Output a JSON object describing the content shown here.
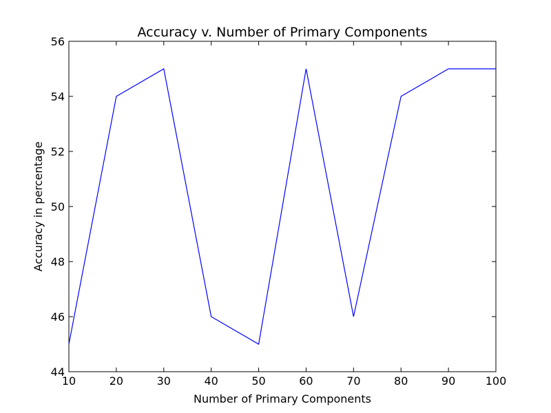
{
  "chart_data": {
    "type": "line",
    "title": "Accuracy v. Number of Primary Components",
    "xlabel": "Number of Primary Components",
    "ylabel": "Accuracy in percentage",
    "x": [
      10,
      20,
      30,
      40,
      50,
      60,
      70,
      80,
      90,
      100
    ],
    "series": [
      {
        "values": [
          45,
          54,
          55,
          46,
          45,
          55,
          46,
          54,
          55,
          55
        ]
      }
    ],
    "xlim": [
      10,
      100
    ],
    "ylim": [
      44,
      56
    ],
    "xticks": [
      10,
      20,
      30,
      40,
      50,
      60,
      70,
      80,
      90,
      100
    ],
    "xtick_labels": [
      "10",
      "20",
      "30",
      "40",
      "50",
      "60",
      "70",
      "80",
      "90",
      "100"
    ],
    "yticks": [
      44,
      46,
      48,
      50,
      52,
      54,
      56
    ],
    "ytick_labels": [
      "44",
      "46",
      "48",
      "50",
      "52",
      "54",
      "56"
    ],
    "grid": false,
    "line_color": "#0000ff"
  }
}
